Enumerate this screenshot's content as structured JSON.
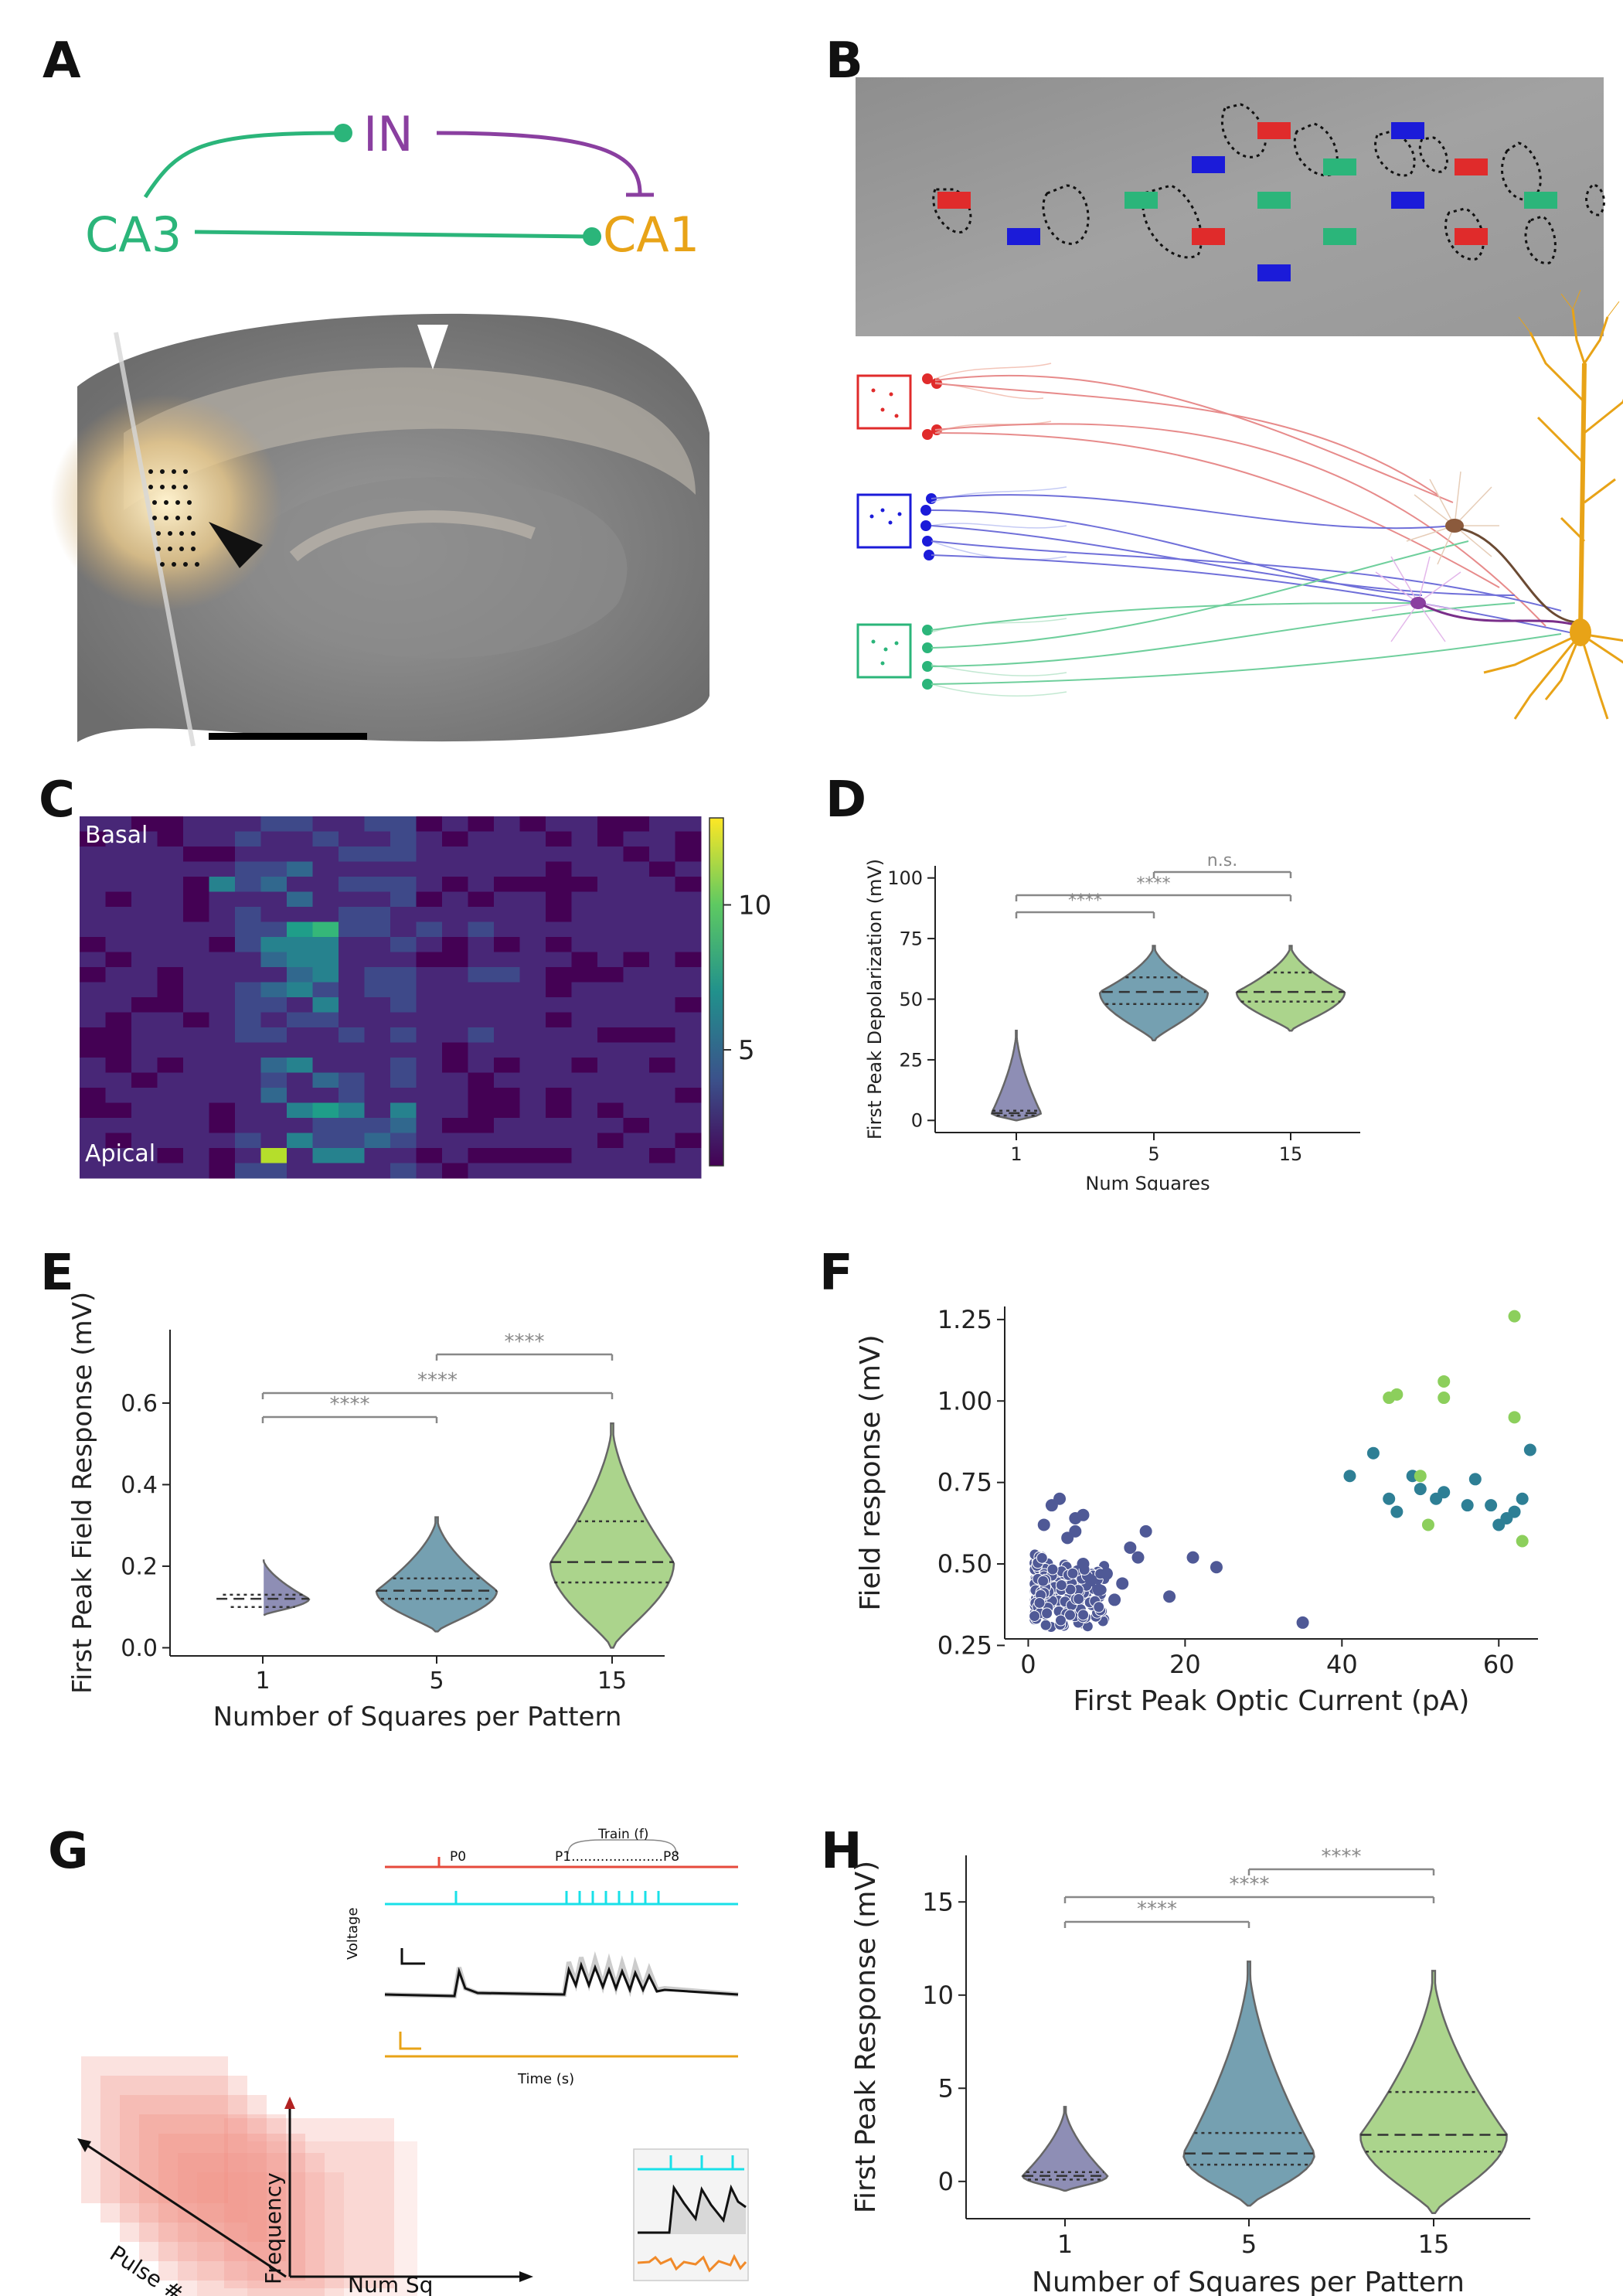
{
  "panels": {
    "a": "A",
    "b": "B",
    "c": "C",
    "d": "D",
    "e": "E",
    "f": "F",
    "g": "G",
    "h": "H"
  },
  "panel_a": {
    "ca3": "CA3",
    "in": "IN",
    "ca1": "CA1"
  },
  "panel_c": {
    "top_label": "Basal",
    "bottom_label": "Apical"
  },
  "panel_g": {
    "p0": "P0",
    "train": "Train (f)",
    "p1p8": "P1......................P8",
    "voltage": "Voltage",
    "time": "Time (s)",
    "pulse": "Pulse #",
    "frequency": "Frequency",
    "numsq": "Num Sq"
  },
  "colors": {
    "green": "#2bb57a",
    "purple": "#8a3fa0",
    "orange": "#e8a317",
    "red": "#e02b2b",
    "blue": "#1b1bd9",
    "lavender": "#7a7aa8",
    "teal": "#5d8fa3",
    "lightgreen": "#9ccc78",
    "viridis_dark": "#440154",
    "viridis_mid": "#21918c",
    "viridis_light": "#fde725"
  },
  "chart_data": [
    {
      "id": "C",
      "type": "heatmap",
      "top_label": "Basal",
      "bottom_label": "Apical",
      "colorbar_ticks": [
        5,
        10
      ],
      "colorbar_range": [
        1,
        13
      ]
    },
    {
      "id": "D",
      "type": "violin",
      "ylabel": "First Peak Depolarization (mV)",
      "xlabel": "Num Squares",
      "categories": [
        "1",
        "5",
        "15"
      ],
      "yticks": [
        0,
        25,
        50,
        75,
        100
      ],
      "ylim": [
        -5,
        105
      ],
      "series": [
        {
          "category": "1",
          "median": 3,
          "q1": 2,
          "q3": 4,
          "min": 0,
          "max": 37
        },
        {
          "category": "5",
          "median": 53,
          "q1": 48,
          "q3": 59,
          "min": 33,
          "max": 72
        },
        {
          "category": "15",
          "median": 53,
          "q1": 49,
          "q3": 61,
          "min": 37,
          "max": 72
        }
      ],
      "significance": [
        {
          "pair": [
            "1",
            "5"
          ],
          "label": "****"
        },
        {
          "pair": [
            "1",
            "15"
          ],
          "label": "****"
        },
        {
          "pair": [
            "5",
            "15"
          ],
          "label": "n.s."
        }
      ]
    },
    {
      "id": "E",
      "type": "violin",
      "ylabel": "First Peak Field Response (mV)",
      "xlabel": "Number of Squares per Pattern",
      "categories": [
        "1",
        "5",
        "15"
      ],
      "yticks": [
        "0.0",
        "0.2",
        "0.4",
        "0.6"
      ],
      "ylim": [
        -0.02,
        0.78
      ],
      "series": [
        {
          "category": "1",
          "median": 0.12,
          "q1": 0.1,
          "q3": 0.13,
          "min": 0.08,
          "max": 0.22
        },
        {
          "category": "5",
          "median": 0.14,
          "q1": 0.12,
          "q3": 0.17,
          "min": 0.04,
          "max": 0.32
        },
        {
          "category": "15",
          "median": 0.21,
          "q1": 0.16,
          "q3": 0.31,
          "min": 0.0,
          "max": 0.55
        }
      ],
      "significance": [
        {
          "pair": [
            "1",
            "5"
          ],
          "label": "****"
        },
        {
          "pair": [
            "1",
            "15"
          ],
          "label": "****"
        },
        {
          "pair": [
            "5",
            "15"
          ],
          "label": "****"
        }
      ]
    },
    {
      "id": "F",
      "type": "scatter",
      "ylabel": "Field response (mV)",
      "xlabel": "First Peak Optic Current (pA)",
      "xticks": [
        "0",
        "20",
        "40",
        "60"
      ],
      "yticks": [
        "0.25",
        "0.50",
        "0.75",
        "1.00",
        "1.25"
      ],
      "xlim": [
        -3,
        65
      ],
      "ylim": [
        0.27,
        1.29
      ],
      "series": [
        {
          "group": "1",
          "x": [
            8,
            10,
            12,
            14,
            6,
            5,
            9,
            11,
            7,
            13,
            15,
            18,
            21,
            24,
            35,
            3,
            4,
            2,
            6,
            7
          ],
          "y": [
            0.45,
            0.47,
            0.44,
            0.52,
            0.6,
            0.58,
            0.42,
            0.39,
            0.5,
            0.55,
            0.6,
            0.4,
            0.52,
            0.49,
            0.32,
            0.68,
            0.7,
            0.62,
            0.64,
            0.65
          ]
        },
        {
          "group": "5",
          "x": [
            41,
            44,
            46,
            47,
            49,
            50,
            52,
            53,
            56,
            57,
            59,
            60,
            61,
            62,
            63,
            64
          ],
          "y": [
            0.77,
            0.84,
            0.7,
            0.66,
            0.77,
            0.73,
            0.7,
            0.72,
            0.68,
            0.76,
            0.68,
            0.62,
            0.64,
            0.66,
            0.7,
            0.85
          ]
        },
        {
          "group": "15",
          "x": [
            46,
            47,
            50,
            51,
            53,
            53,
            62,
            62,
            63
          ],
          "y": [
            1.01,
            1.02,
            0.77,
            0.62,
            1.06,
            1.01,
            1.26,
            0.95,
            0.57
          ]
        }
      ]
    },
    {
      "id": "H",
      "type": "violin",
      "ylabel": "First Peak Response (mV)",
      "xlabel": "Number of Squares per Pattern",
      "categories": [
        "1",
        "5",
        "15"
      ],
      "yticks": [
        "0",
        "5",
        "10",
        "15"
      ],
      "ylim": [
        -2,
        17.5
      ],
      "series": [
        {
          "category": "1",
          "median": 0.3,
          "q1": 0.1,
          "q3": 0.5,
          "min": -0.5,
          "max": 4
        },
        {
          "category": "5",
          "median": 1.5,
          "q1": 0.9,
          "q3": 2.6,
          "min": -1.3,
          "max": 11.8
        },
        {
          "category": "15",
          "median": 2.5,
          "q1": 1.6,
          "q3": 4.8,
          "min": -1.7,
          "max": 11.3
        }
      ],
      "significance": [
        {
          "pair": [
            "1",
            "5"
          ],
          "label": "****"
        },
        {
          "pair": [
            "1",
            "15"
          ],
          "label": "****"
        },
        {
          "pair": [
            "5",
            "15"
          ],
          "label": "****"
        }
      ]
    }
  ]
}
